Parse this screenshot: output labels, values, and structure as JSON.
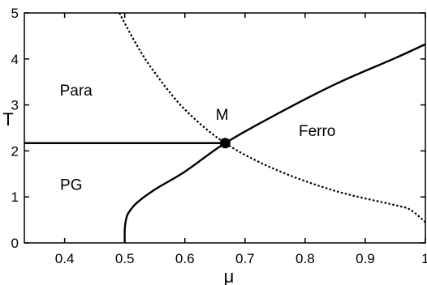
{
  "chart_data": {
    "type": "line",
    "title": "",
    "xlabel": "μ",
    "ylabel": "T",
    "xlim": [
      0.333,
      1.0
    ],
    "ylim": [
      0,
      5
    ],
    "xticks": [
      "0.4",
      "0.5",
      "0.6",
      "0.7",
      "0.8",
      "0.9",
      "1"
    ],
    "xtick_values": [
      0.4,
      0.5,
      0.6,
      0.7,
      0.8,
      0.9,
      1.0
    ],
    "yticks": [
      "0",
      "1",
      "2",
      "3",
      "4",
      "5"
    ],
    "ytick_values": [
      0,
      1,
      2,
      3,
      4,
      5
    ],
    "grid": false,
    "series": [
      {
        "style": "solid",
        "color": "#000000",
        "points": [
          [
            0.333,
            2.17
          ],
          [
            0.667,
            2.17
          ]
        ]
      },
      {
        "style": "solid",
        "color": "#000000",
        "points": [
          [
            0.5,
            0.0
          ],
          [
            0.5,
            0.3
          ],
          [
            0.502,
            0.5
          ],
          [
            0.506,
            0.65
          ],
          [
            0.52,
            0.87
          ],
          [
            0.55,
            1.16
          ],
          [
            0.6,
            1.55
          ],
          [
            0.667,
            2.17
          ],
          [
            0.75,
            2.78
          ],
          [
            0.85,
            3.45
          ],
          [
            0.95,
            4.02
          ],
          [
            1.0,
            4.32
          ]
        ]
      },
      {
        "style": "dotted",
        "color": "#000000",
        "points": [
          [
            0.491,
            5.0
          ],
          [
            0.52,
            4.3
          ],
          [
            0.55,
            3.7
          ],
          [
            0.6,
            2.9
          ],
          [
            0.667,
            2.17
          ],
          [
            0.75,
            1.6
          ],
          [
            0.85,
            1.13
          ],
          [
            0.95,
            0.82
          ],
          [
            0.975,
            0.72
          ],
          [
            1.0,
            0.45
          ]
        ]
      }
    ],
    "points": [
      {
        "label": "M",
        "x": 0.667,
        "y": 2.17
      }
    ],
    "annotations": [
      {
        "text": "Para",
        "x": 0.419,
        "y": 3.2
      },
      {
        "text": "PG",
        "x": 0.411,
        "y": 1.15
      },
      {
        "text": "Ferro",
        "x": 0.82,
        "y": 2.32
      },
      {
        "text": "M",
        "x": 0.662,
        "y": 2.68
      }
    ]
  }
}
